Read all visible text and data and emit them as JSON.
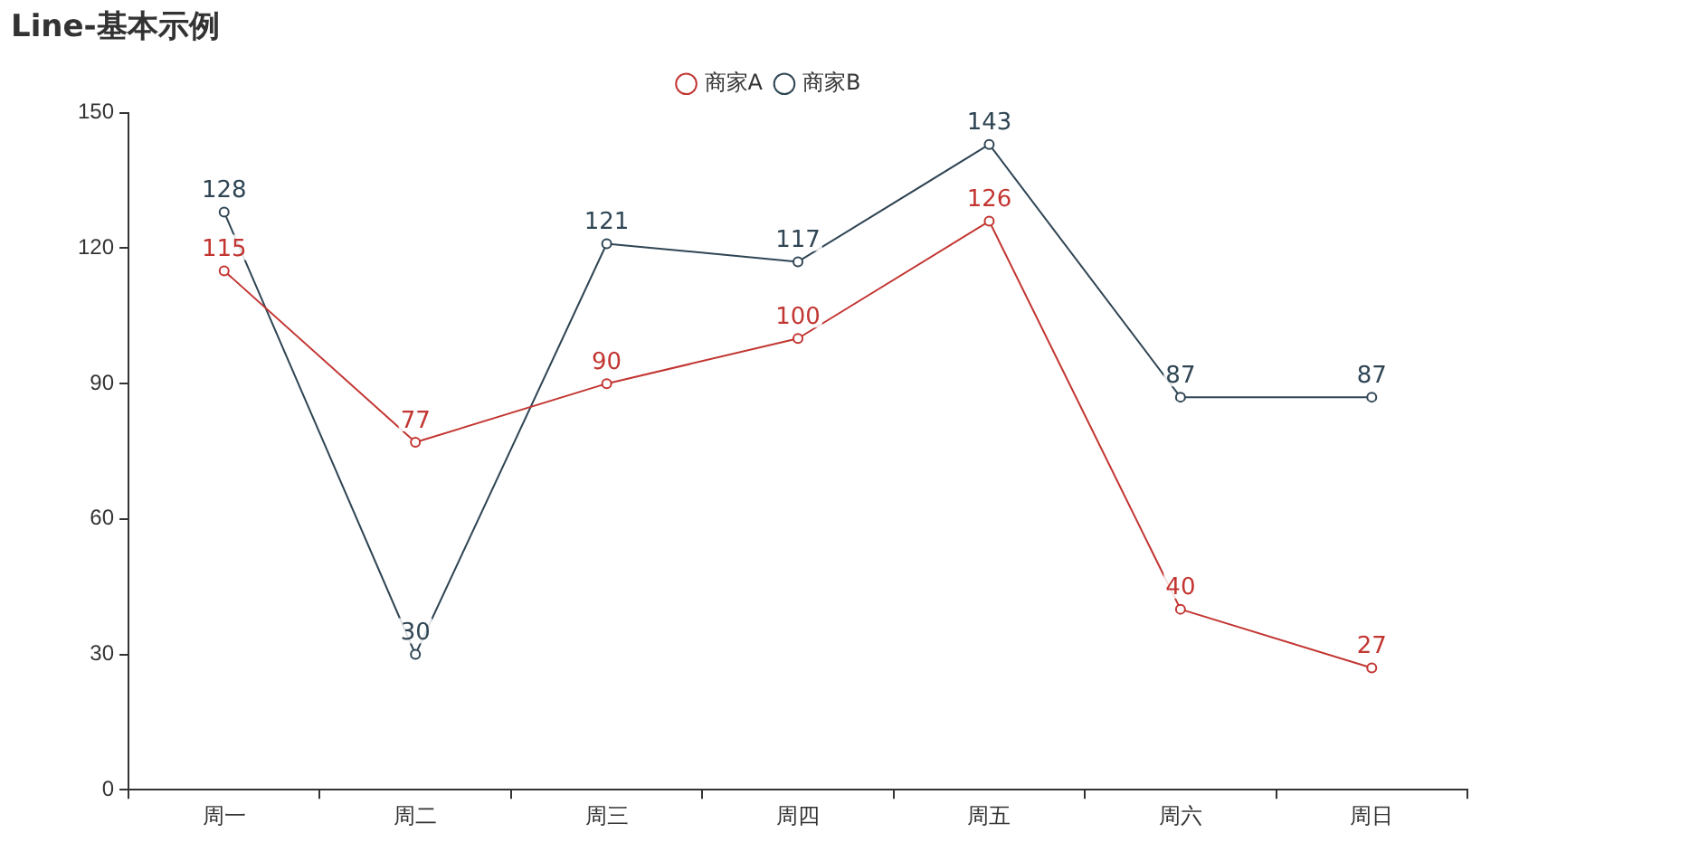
{
  "chart_data": {
    "type": "line",
    "title": "Line-基本示例",
    "categories": [
      "周一",
      "周二",
      "周三",
      "周四",
      "周五",
      "周六",
      "周日"
    ],
    "series": [
      {
        "name": "商家A",
        "color": "#c23531",
        "values": [
          115,
          77,
          90,
          100,
          126,
          40,
          27
        ]
      },
      {
        "name": "商家B",
        "color": "#2f4554",
        "values": [
          128,
          30,
          121,
          117,
          143,
          87,
          87
        ]
      }
    ],
    "ylim": [
      0,
      150
    ],
    "yticks": [
      0,
      30,
      60,
      90,
      120,
      150
    ],
    "grid": false,
    "legend": "top",
    "marker": "circle",
    "line_style": "solid",
    "data_labels": true
  }
}
